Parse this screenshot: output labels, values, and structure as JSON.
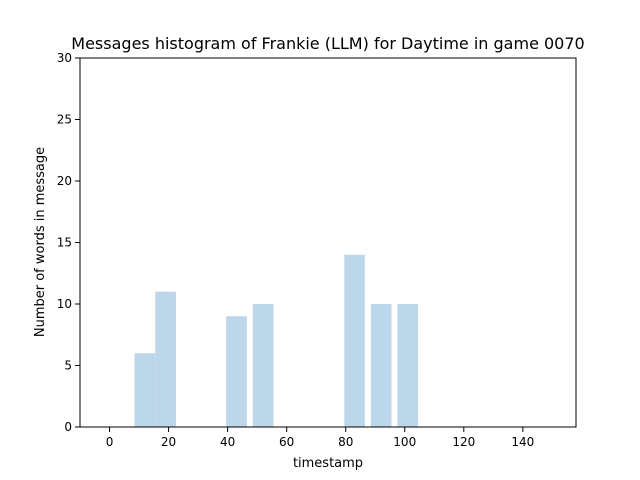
{
  "chart_data": {
    "type": "bar",
    "title": "Messages histogram of Frankie (LLM) for Daytime in game 0070",
    "xlabel": "timestamp",
    "ylabel": "Number of words in message",
    "x": [
      12,
      19,
      43,
      52,
      83,
      92,
      101
    ],
    "values": [
      6,
      11,
      9,
      10,
      14,
      10,
      10
    ],
    "bar_width": 7,
    "xlim": [
      -10,
      158
    ],
    "ylim": [
      0,
      30
    ],
    "xticks": [
      0,
      20,
      40,
      60,
      80,
      100,
      120,
      140
    ],
    "yticks": [
      0,
      5,
      10,
      15,
      20,
      25,
      30
    ],
    "grid": false,
    "bar_color": "#bcd6ea"
  }
}
